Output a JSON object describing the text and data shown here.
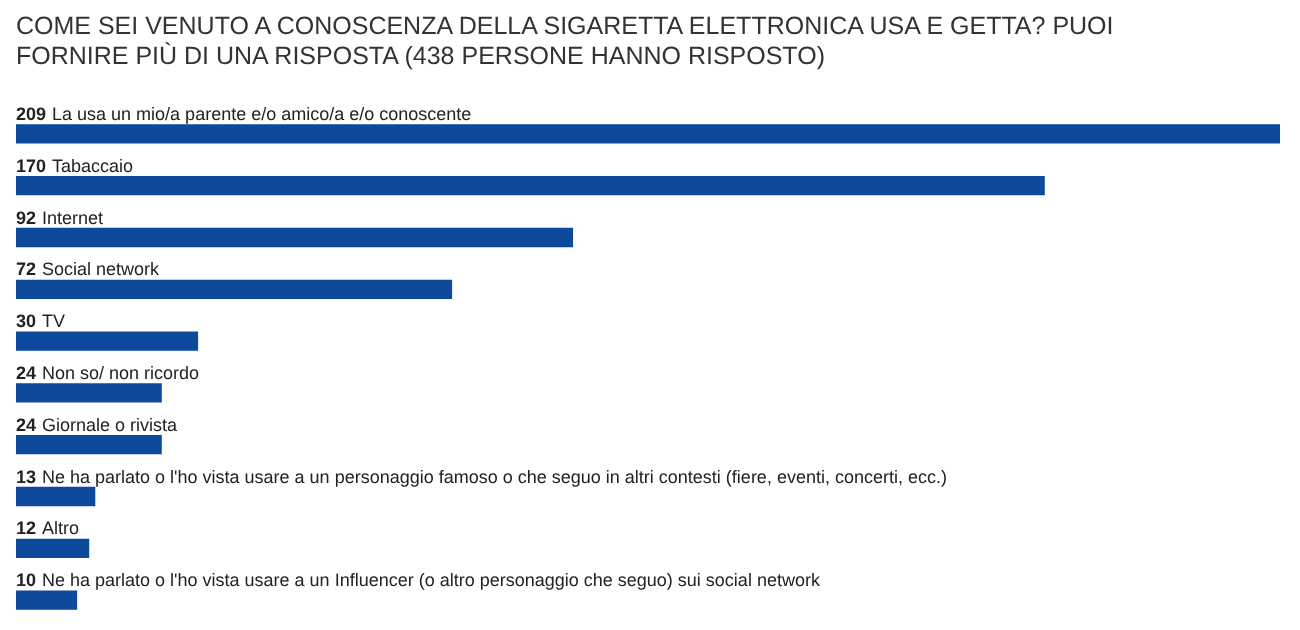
{
  "chart_data": {
    "type": "bar",
    "orientation": "horizontal",
    "title": "COME SEI VENUTO A CONOSCENZA DELLA SIGARETTA ELETTRONICA USA E GETTA? PUOI FORNIRE PIÙ DI UNA RISPOSTA (438 PERSONE HANNO RISPOSTO)",
    "categories": [
      "La usa un mio/a parente e/o amico/a e/o conoscente",
      "Tabaccaio",
      "Internet",
      "Social network",
      "TV",
      "Non so/ non ricordo",
      "Giornale o rivista",
      "Ne ha parlato o l'ho vista usare a un personaggio famoso o che seguo in altri contesti (fiere, eventi, concerti, ecc.)",
      "Altro",
      "Ne ha parlato o l'ho vista usare a un Influencer (o altro personaggio che seguo) sui social network"
    ],
    "values": [
      209,
      170,
      92,
      72,
      30,
      24,
      24,
      13,
      12,
      10
    ],
    "color": "#0d4a9e",
    "data_labels": true,
    "legend": false
  }
}
